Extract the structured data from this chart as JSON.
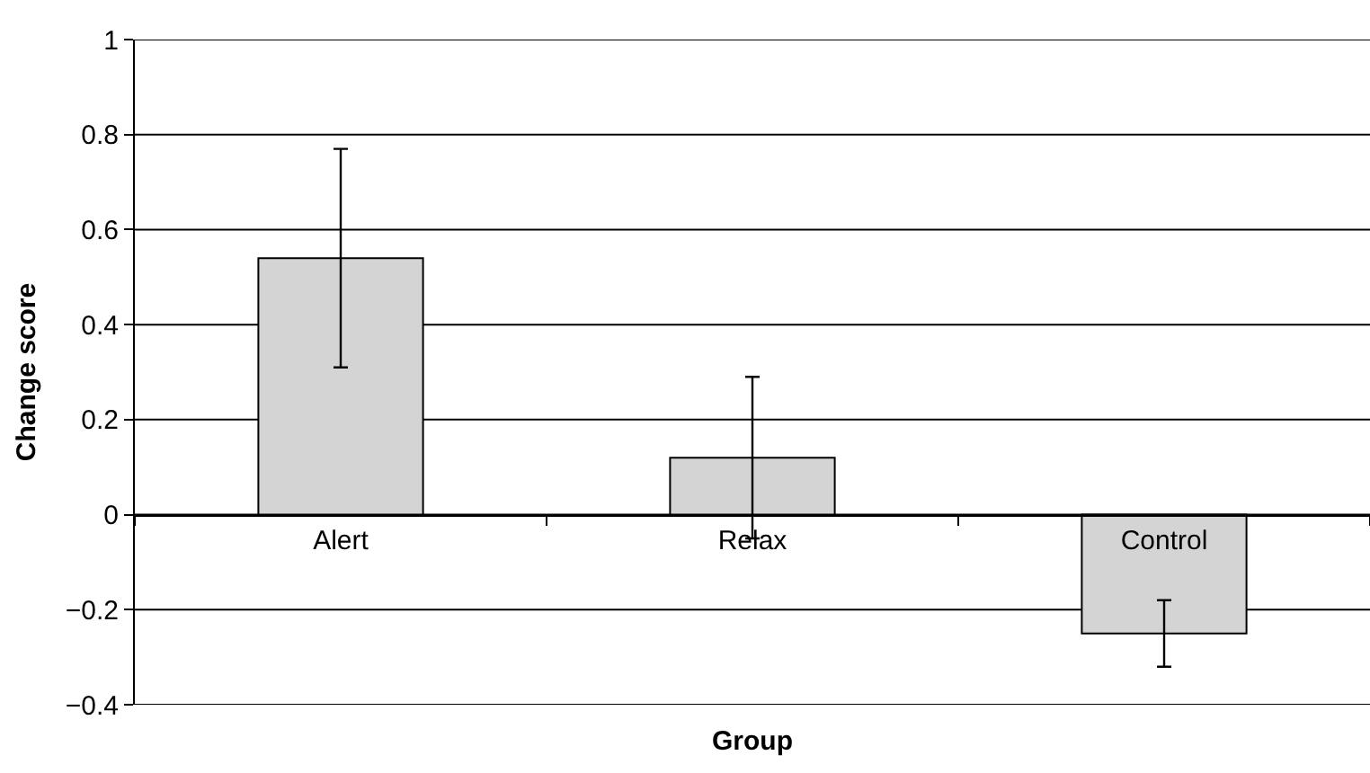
{
  "chart_data": {
    "type": "bar",
    "xlabel": "Group",
    "ylabel": "Change score",
    "categories": [
      "Alert",
      "Relax",
      "Control"
    ],
    "values": [
      0.54,
      0.12,
      -0.25
    ],
    "errors": [
      [
        0.31,
        0.77
      ],
      [
        -0.05,
        0.29
      ],
      [
        -0.32,
        -0.18
      ]
    ],
    "color": "#d4d4d4",
    "ylim": [
      -0.4,
      1
    ],
    "yticks": [
      {
        "value": -0.4,
        "label": "−0.4"
      },
      {
        "value": -0.2,
        "label": "−0.2"
      },
      0,
      0.2,
      0.4,
      0.6,
      0.8,
      1
    ],
    "grid": "y"
  }
}
